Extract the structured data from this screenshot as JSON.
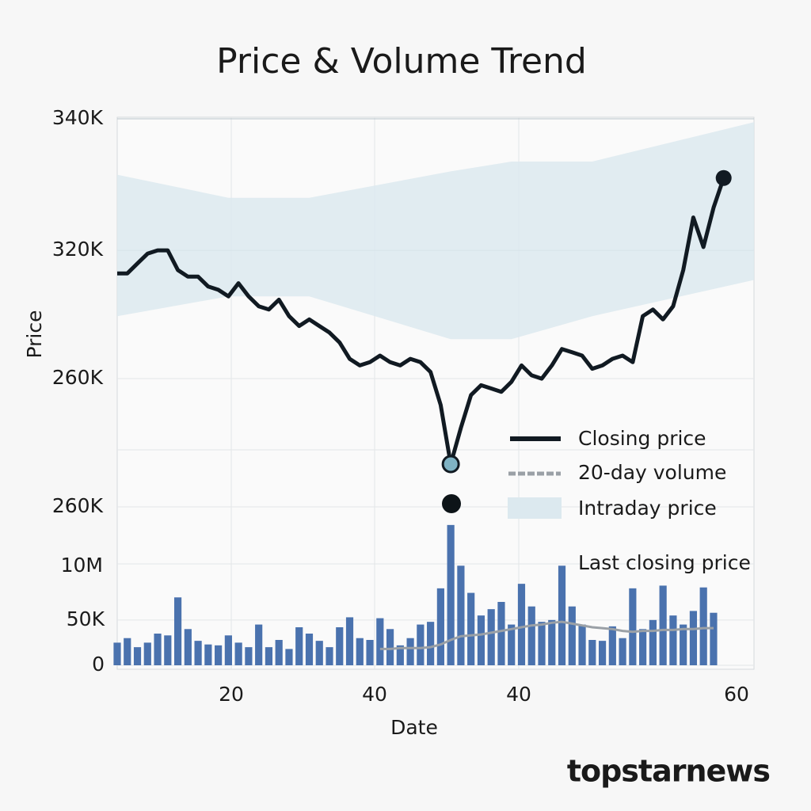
{
  "chart_data": {
    "type": "line",
    "title": "Price & Volume Trend",
    "x_label": "Date",
    "y_label": "Price",
    "x": [
      1,
      2,
      3,
      4,
      5,
      6,
      7,
      8,
      9,
      10,
      11,
      12,
      13,
      14,
      15,
      16,
      17,
      18,
      19,
      20,
      21,
      22,
      23,
      24,
      25,
      26,
      27,
      28,
      29,
      30,
      31,
      32,
      33,
      34,
      35,
      36,
      37,
      38,
      39,
      40,
      41,
      42,
      43,
      44,
      45,
      46,
      47,
      48,
      49,
      50,
      51,
      52,
      53,
      54,
      55,
      56,
      57,
      58,
      59,
      60,
      61
    ],
    "xlim": [
      1,
      64
    ],
    "ylim": [
      281000,
      340000
    ],
    "yticks": [
      {
        "value": 340000,
        "label": "340K"
      },
      {
        "value": 320000,
        "label": "320K"
      }
    ],
    "y2lim": [
      0,
      175000
    ],
    "y2ticks": [
      0,
      {
        "value": 50000,
        "label": "50K"
      }
    ],
    "x_tick_texts": [
      "20",
      "40",
      "40",
      "60"
    ],
    "y_extra_labels": [
      "260K",
      "260K",
      "10M"
    ],
    "grid": true,
    "series": [
      {
        "name": "Closing price",
        "color": "#111a22",
        "values": [
          316500,
          316500,
          318000,
          319500,
          320000,
          320000,
          317000,
          316000,
          316000,
          314500,
          314000,
          313000,
          315000,
          313000,
          311500,
          311000,
          312500,
          310000,
          308500,
          309500,
          308500,
          307500,
          306000,
          303500,
          302500,
          303000,
          304000,
          303000,
          302500,
          303500,
          303000,
          301500,
          296500,
          287500,
          293000,
          298000,
          299500,
          299000,
          298500,
          300000,
          302500,
          301000,
          300500,
          302500,
          305000,
          304500,
          304000,
          302000,
          302500,
          303500,
          304000,
          303000,
          310000,
          311000,
          309500,
          311500,
          317000,
          325000,
          320500,
          326500,
          331000
        ]
      },
      {
        "name": "20-day volume",
        "color": "#9aa0a6",
        "axis": "y2",
        "values": [
          null,
          null,
          null,
          null,
          null,
          null,
          null,
          null,
          null,
          null,
          null,
          null,
          null,
          null,
          null,
          null,
          null,
          null,
          null,
          null,
          null,
          null,
          null,
          null,
          null,
          null,
          18000,
          18000,
          19000,
          19000,
          19000,
          20000,
          23000,
          28000,
          32000,
          33000,
          34000,
          36000,
          38000,
          40000,
          42000,
          44000,
          45000,
          47000,
          48000,
          46000,
          44000,
          42000,
          41000,
          40000,
          38000,
          37000,
          38000,
          38000,
          39000,
          39000,
          40000,
          40000,
          41000,
          41000,
          null
        ]
      }
    ],
    "band": {
      "name": "Intraday price",
      "color": "#dce9ef",
      "x": [
        1,
        12,
        20,
        34,
        40,
        48,
        64
      ],
      "upper": [
        331500,
        328000,
        328000,
        332000,
        333500,
        333500,
        339500
      ],
      "lower": [
        310000,
        313000,
        313000,
        306500,
        306500,
        310000,
        315500
      ]
    },
    "volume": {
      "color": "#4a72ae",
      "values": [
        25000,
        30000,
        20000,
        25000,
        35000,
        33000,
        75000,
        40000,
        27000,
        23000,
        22000,
        33000,
        25000,
        20000,
        45000,
        20000,
        28000,
        18000,
        42000,
        35000,
        27000,
        20000,
        42000,
        53000,
        30000,
        28000,
        52000,
        40000,
        22000,
        30000,
        45000,
        48000,
        85000,
        155000,
        110000,
        80000,
        55000,
        62000,
        70000,
        45000,
        90000,
        65000,
        48000,
        50000,
        110000,
        65000,
        45000,
        28000,
        27000,
        43000,
        30000,
        85000,
        40000,
        50000,
        88000,
        55000,
        45000,
        60000,
        86000,
        58000,
        null
      ]
    },
    "annotation": "Last closing price",
    "marker_color": "#7fb3c4",
    "watermark": "topstarnews"
  }
}
